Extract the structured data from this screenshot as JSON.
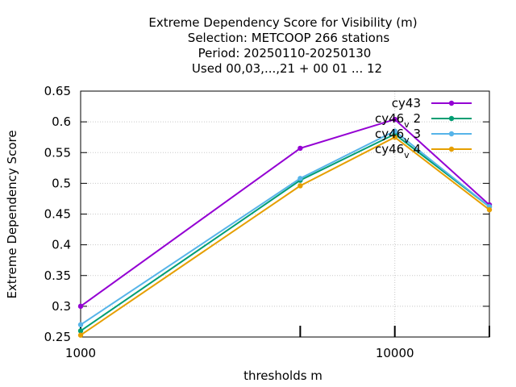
{
  "chart_data": {
    "type": "line",
    "title_lines": [
      "Extreme Dependency Score  for Visibility (m)",
      "Selection: METCOOP    266 stations",
      "Period: 20250110-20250130",
      "Used  00,03,...,21  + 00 01 ... 12"
    ],
    "xlabel": "thresholds m",
    "ylabel": "Extreme Dependency Score",
    "x_scale": "log",
    "xlim": [
      1000,
      20000
    ],
    "ylim": [
      0.25,
      0.65
    ],
    "x_ticks": [
      {
        "value": 1000,
        "label": "1000"
      },
      {
        "value": 10000,
        "label": "10000"
      }
    ],
    "x_minor_ticks": [
      5000,
      20000
    ],
    "y_ticks": [
      {
        "value": 0.25,
        "label": "0.25"
      },
      {
        "value": 0.3,
        "label": "0.3"
      },
      {
        "value": 0.35,
        "label": "0.35"
      },
      {
        "value": 0.4,
        "label": "0.4"
      },
      {
        "value": 0.45,
        "label": "0.45"
      },
      {
        "value": 0.5,
        "label": "0.5"
      },
      {
        "value": 0.55,
        "label": "0.55"
      },
      {
        "value": 0.6,
        "label": "0.6"
      },
      {
        "value": 0.65,
        "label": "0.65"
      }
    ],
    "grid": true,
    "legend_position": "top-right",
    "x": [
      1000,
      5000,
      10000,
      20000
    ],
    "series": [
      {
        "name": "cy43",
        "legend_main": "cy43",
        "legend_sub": "",
        "legend_suffix": "",
        "color": "#9400d3",
        "values": [
          0.3,
          0.557,
          0.604,
          0.465
        ]
      },
      {
        "name": "cy46_v 2",
        "legend_main": "cy46",
        "legend_sub": "v",
        "legend_suffix": "2",
        "color": "#009e73",
        "values": [
          0.26,
          0.505,
          0.58,
          0.462
        ]
      },
      {
        "name": "cy46_v 3",
        "legend_main": "cy46",
        "legend_sub": "v",
        "legend_suffix": "3",
        "color": "#56b4e9",
        "values": [
          0.27,
          0.508,
          0.585,
          0.462
        ]
      },
      {
        "name": "cy46_v 4",
        "legend_main": "cy46",
        "legend_sub": "v",
        "legend_suffix": "4",
        "color": "#e69f00",
        "values": [
          0.253,
          0.496,
          0.575,
          0.457
        ]
      }
    ]
  }
}
